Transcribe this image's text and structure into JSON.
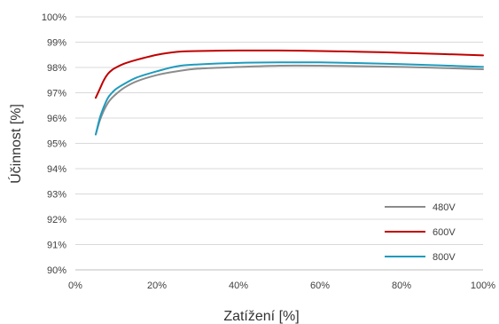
{
  "chart_data": {
    "type": "line",
    "xlabel": "Zatížení [%]",
    "ylabel": "Účinnost  [%]",
    "xlim": [
      0,
      100
    ],
    "ylim": [
      90,
      100
    ],
    "x_ticks": [
      0,
      20,
      40,
      60,
      80,
      100
    ],
    "x_tick_labels": [
      "0%",
      "20%",
      "40%",
      "60%",
      "80%",
      "100%"
    ],
    "y_ticks": [
      90,
      91,
      92,
      93,
      94,
      95,
      96,
      97,
      98,
      99,
      100
    ],
    "y_tick_labels": [
      "90%",
      "91%",
      "92%",
      "93%",
      "94%",
      "95%",
      "96%",
      "97%",
      "98%",
      "99%",
      "100%"
    ],
    "grid": "horizontal",
    "legend_position": "bottom-right",
    "series": [
      {
        "name": "480V",
        "color": "#8c8c8c",
        "x": [
          5,
          6,
          7,
          8,
          9,
          10,
          12,
          15,
          20,
          25,
          30,
          40,
          50,
          60,
          70,
          80,
          90,
          100
        ],
        "y": [
          95.35,
          95.9,
          96.3,
          96.6,
          96.8,
          96.95,
          97.2,
          97.45,
          97.7,
          97.85,
          97.95,
          98.02,
          98.07,
          98.07,
          98.05,
          98.02,
          97.98,
          97.93
        ]
      },
      {
        "name": "600V",
        "color": "#c00000",
        "x": [
          5,
          6,
          7,
          8,
          9,
          10,
          12,
          15,
          20,
          25,
          30,
          40,
          50,
          60,
          70,
          80,
          90,
          100
        ],
        "y": [
          96.8,
          97.15,
          97.5,
          97.75,
          97.9,
          98.0,
          98.15,
          98.3,
          98.5,
          98.62,
          98.65,
          98.67,
          98.67,
          98.65,
          98.62,
          98.58,
          98.53,
          98.48
        ]
      },
      {
        "name": "800V",
        "color": "#1f9bbd",
        "x": [
          5,
          6,
          7,
          8,
          9,
          10,
          12,
          15,
          20,
          25,
          30,
          40,
          50,
          60,
          70,
          80,
          90,
          100
        ],
        "y": [
          95.35,
          96.0,
          96.45,
          96.8,
          97.0,
          97.15,
          97.35,
          97.6,
          97.85,
          98.05,
          98.12,
          98.18,
          98.2,
          98.2,
          98.17,
          98.13,
          98.08,
          98.02
        ]
      }
    ]
  }
}
